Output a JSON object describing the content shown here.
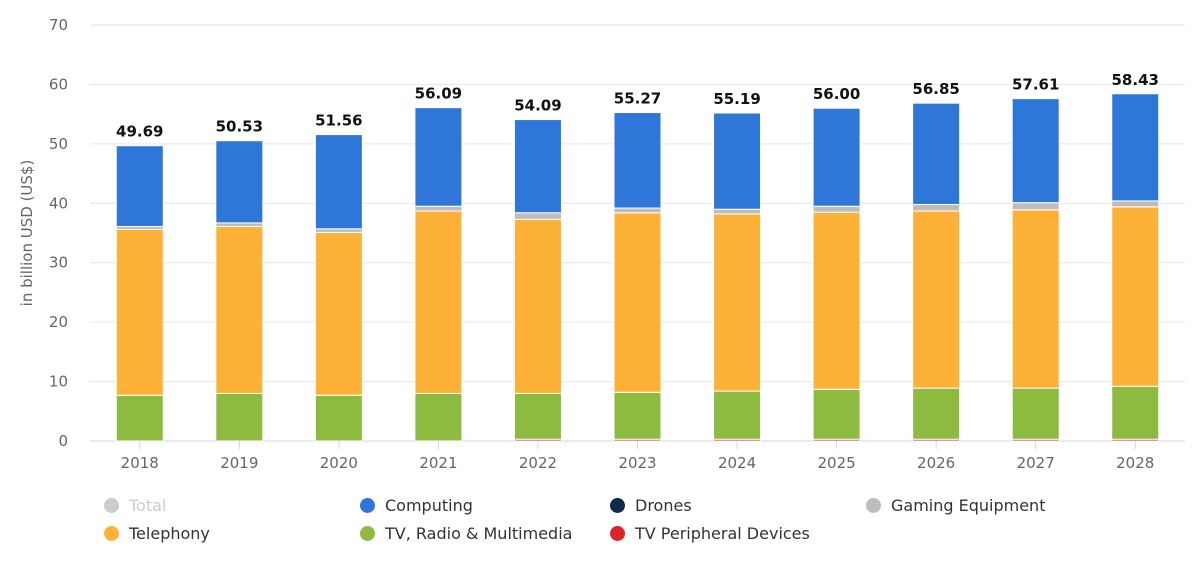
{
  "chart_data": {
    "type": "bar",
    "stacked": true,
    "ylabel": "in billion USD (US$)",
    "xlabel": "",
    "ylim": [
      0,
      70
    ],
    "yticks": [
      0,
      10,
      20,
      30,
      40,
      50,
      60,
      70
    ],
    "grid": true,
    "legend_position": "bottom",
    "categories": [
      "2018",
      "2019",
      "2020",
      "2021",
      "2022",
      "2023",
      "2024",
      "2025",
      "2026",
      "2027",
      "2028"
    ],
    "totals": [
      "49.69",
      "50.53",
      "51.56",
      "56.09",
      "54.09",
      "55.27",
      "55.19",
      "56.00",
      "56.85",
      "57.61",
      "58.43"
    ],
    "series": [
      {
        "name": "TV Peripheral Devices",
        "color": "#d8262b",
        "values": [
          0,
          0,
          0,
          0,
          0.3,
          0.3,
          0.3,
          0.3,
          0.3,
          0.3,
          0.3
        ]
      },
      {
        "name": "TV, Radio & Multimedia",
        "color": "#8cbb40",
        "values": [
          7.7,
          8.0,
          7.7,
          8.0,
          7.7,
          7.9,
          8.1,
          8.4,
          8.6,
          8.6,
          8.9
        ]
      },
      {
        "name": "Telephony",
        "color": "#fdb237",
        "values": [
          27.9,
          28.1,
          27.4,
          30.7,
          29.3,
          30.2,
          29.8,
          29.8,
          29.8,
          30.0,
          30.2
        ]
      },
      {
        "name": "Gaming Equipment",
        "color": "#bdbdbd",
        "values": [
          0.5,
          0.6,
          0.6,
          0.8,
          1.1,
          0.8,
          0.8,
          1.0,
          1.1,
          1.2,
          1.0
        ]
      },
      {
        "name": "Drones",
        "color": "#0f2a43",
        "values": [
          0,
          0,
          0,
          0,
          0,
          0,
          0,
          0,
          0,
          0,
          0
        ]
      },
      {
        "name": "Computing",
        "color": "#2e77d8",
        "values": [
          13.59,
          13.83,
          15.86,
          16.59,
          15.69,
          16.07,
          16.19,
          16.5,
          17.05,
          17.51,
          18.03
        ]
      }
    ],
    "legend": [
      {
        "name": "Total",
        "color": "#cccccc",
        "hidden": true
      },
      {
        "name": "Computing",
        "color": "#2e77d8"
      },
      {
        "name": "Drones",
        "color": "#0f2a43"
      },
      {
        "name": "Gaming Equipment",
        "color": "#bdbdbd"
      },
      {
        "name": "Telephony",
        "color": "#fdb237"
      },
      {
        "name": "TV, Radio & Multimedia",
        "color": "#8cbb40"
      },
      {
        "name": "TV Peripheral Devices",
        "color": "#d8262b"
      }
    ]
  }
}
